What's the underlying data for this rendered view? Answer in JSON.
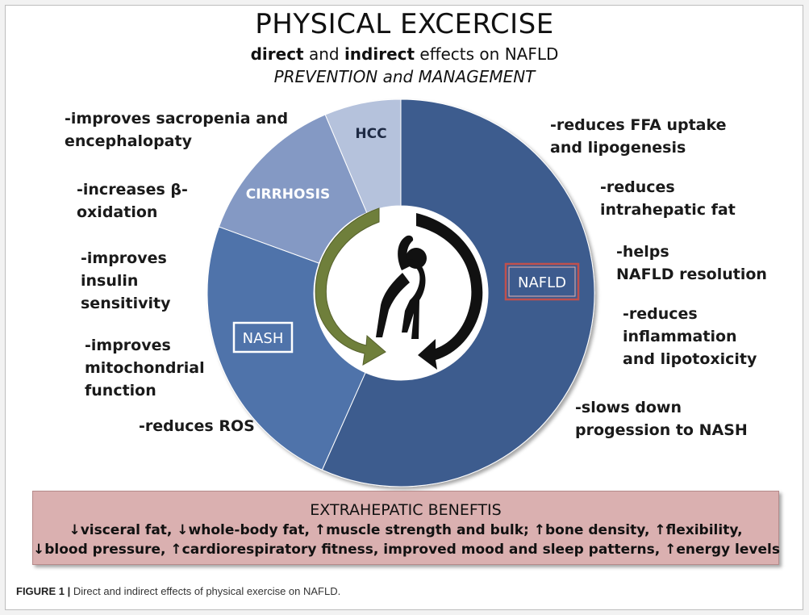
{
  "title": "PHYSICAL EXCERCISE",
  "subtitle": {
    "direct": "direct",
    "and": " and ",
    "indirect": "indirect",
    "rest": " effects on NAFLD"
  },
  "subtitle2": "PREVENTION and MANAGEMENT",
  "ring_segments": [
    {
      "label": "NAFLD",
      "color": "#3d5b8e"
    },
    {
      "label": "NASH",
      "color": "#4f73aa"
    },
    {
      "label": "CIRRHOSIS",
      "color": "#8499c4"
    },
    {
      "label": "HCC",
      "color": "#b5c2dc"
    }
  ],
  "colors": {
    "nafld_box_border": "#c0504d",
    "nafld_box_fill": "#3d5b8e",
    "green_arrow": "#6f7f3b",
    "black_arrow": "#111111",
    "benefits_bg": "#dab0b0"
  },
  "figure_icon": "person-stretching-icon",
  "left_labels": [
    "-improves sacropenia and\nencephalopaty",
    "-increases β-\noxidation",
    "-improves\ninsulin\nsensitivity",
    "-improves\nmitochondrial\nfunction",
    "-reduces ROS"
  ],
  "right_labels": [
    "-reduces FFA uptake\nand lipogenesis",
    "-reduces\nintrahepatic fat",
    "-helps\nNAFLD resolution",
    "-reduces\ninflammation\nand lipotoxicity",
    "-slows down\nprogession to NASH"
  ],
  "benefits": {
    "title": "EXTRAHEPATIC BENEFTIS",
    "line1": "↓visceral fat, ↓whole-body fat, ↑muscle strength and bulk; ↑bone density, ↑flexibility,",
    "line2": "↓blood pressure, ↑cardiorespiratory  fitness, improved mood and sleep patterns, ↑energy levels"
  },
  "caption": {
    "label": "FIGURE 1 |",
    "text": " Direct and indirect effects of physical exercise on NAFLD."
  }
}
